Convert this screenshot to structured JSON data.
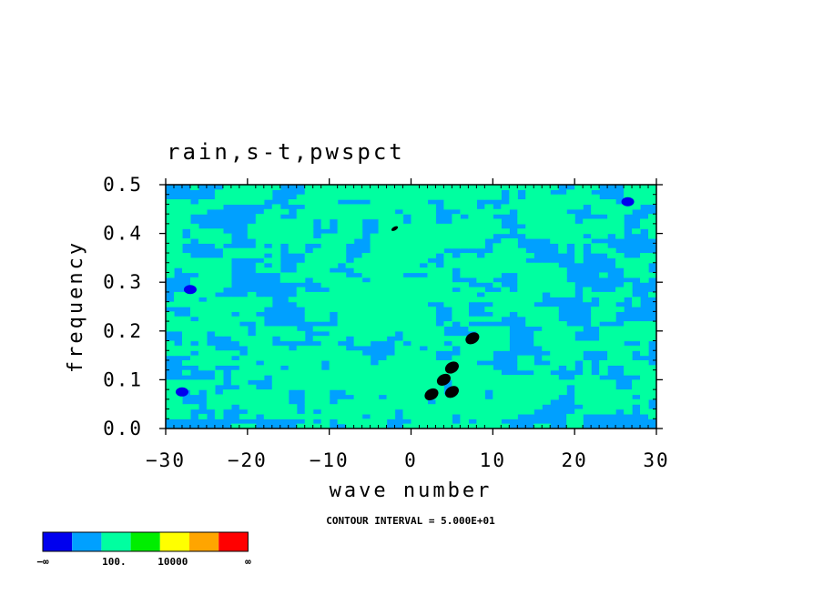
{
  "chart_data": {
    "type": "heatmap",
    "title": "rain,s-t,pwspct",
    "xlabel": "wave number",
    "ylabel": "frequency",
    "xlim": [
      -30,
      30
    ],
    "ylim": [
      0,
      0.5
    ],
    "x_ticks": [
      "−30",
      "−20",
      "−10",
      "0",
      "10",
      "20",
      "30"
    ],
    "y_ticks": [
      "0.0",
      "0.1",
      "0.2",
      "0.3",
      "0.4",
      "0.5"
    ],
    "grid": false,
    "contour_note": "CONTOUR INTERVAL = 5.000E+01",
    "colorbar": {
      "colors": [
        "#0000ee",
        "#00a0ff",
        "#00ffa0",
        "#00ee00",
        "#ffff00",
        "#ffa500",
        "#ff0000"
      ],
      "labels": [
        "−∞",
        "100.",
        "10000",
        "∞"
      ]
    },
    "background_level_color": "#00a0ff",
    "dominant_level_color": "#00ffa0",
    "low_level_color": "#0000ee",
    "peak_color": "#000000",
    "peaks": [
      {
        "x": 2.5,
        "y": 0.07
      },
      {
        "x": 4.0,
        "y": 0.1
      },
      {
        "x": 5.0,
        "y": 0.125
      },
      {
        "x": 7.5,
        "y": 0.185
      },
      {
        "x": 5.0,
        "y": 0.075
      },
      {
        "x": -2.0,
        "y": 0.41
      }
    ],
    "low_spots": [
      {
        "x": 26.5,
        "y": 0.465
      },
      {
        "x": -27.0,
        "y": 0.285
      },
      {
        "x": -28.0,
        "y": 0.075
      }
    ]
  }
}
